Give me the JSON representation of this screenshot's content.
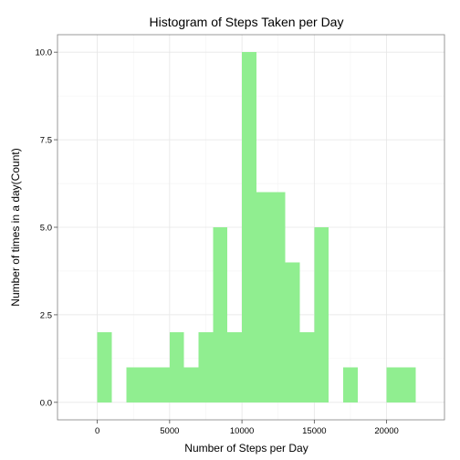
{
  "chart_data": {
    "type": "bar",
    "title": "Histogram of Steps Taken per Day",
    "xlabel": "Number of Steps per Day",
    "ylabel": "Number of times in a day(Count)",
    "xlim": [
      -2750,
      24000
    ],
    "ylim": [
      -0.5,
      10.5
    ],
    "x_ticks": [
      0,
      5000,
      10000,
      15000,
      20000
    ],
    "y_ticks": [
      0,
      2.5,
      5,
      7.5,
      10
    ],
    "x_tick_labels": [
      "0",
      "5000",
      "10000",
      "15000",
      "20000"
    ],
    "y_tick_labels": [
      "0.0",
      "2.5",
      "5.0",
      "7.5",
      "10.0"
    ],
    "grid": true,
    "bar_color": "#90ee90",
    "bin_width": 1000,
    "bins": [
      {
        "start": 0,
        "count": 2
      },
      {
        "start": 1000,
        "count": 0
      },
      {
        "start": 2000,
        "count": 1
      },
      {
        "start": 3000,
        "count": 1
      },
      {
        "start": 4000,
        "count": 1
      },
      {
        "start": 5000,
        "count": 2
      },
      {
        "start": 6000,
        "count": 1
      },
      {
        "start": 7000,
        "count": 2
      },
      {
        "start": 8000,
        "count": 5
      },
      {
        "start": 9000,
        "count": 2
      },
      {
        "start": 10000,
        "count": 10
      },
      {
        "start": 11000,
        "count": 6
      },
      {
        "start": 12000,
        "count": 6
      },
      {
        "start": 13000,
        "count": 4
      },
      {
        "start": 14000,
        "count": 2
      },
      {
        "start": 15000,
        "count": 5
      },
      {
        "start": 16000,
        "count": 0
      },
      {
        "start": 17000,
        "count": 1
      },
      {
        "start": 18000,
        "count": 0
      },
      {
        "start": 19000,
        "count": 0
      },
      {
        "start": 20000,
        "count": 1
      },
      {
        "start": 21000,
        "count": 1
      }
    ]
  }
}
